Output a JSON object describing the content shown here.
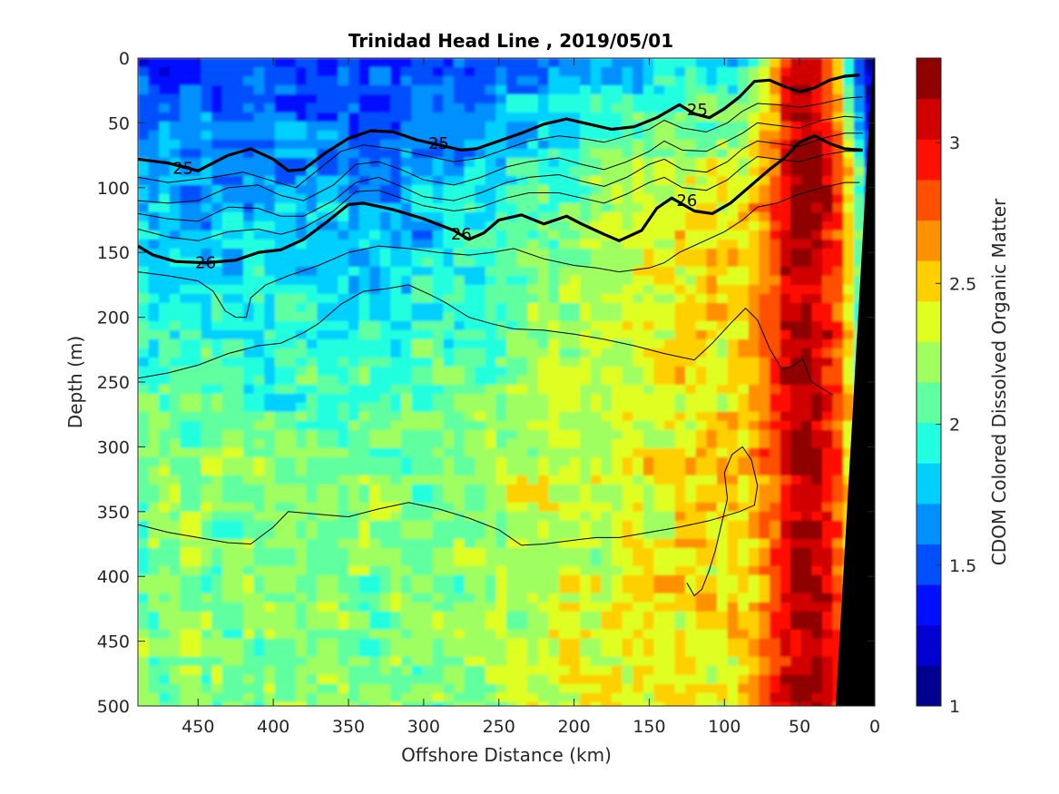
{
  "chart_data": {
    "type": "heatmap",
    "title": "Trinidad Head Line , 2019/05/01",
    "xlabel": "Offshore Distance (km)",
    "ylabel": "Depth (m)",
    "colorbar_label": "CDOM Colored Dissolved Organic Matter",
    "xlim": [
      490,
      0
    ],
    "ylim": [
      500,
      0
    ],
    "clim": [
      1,
      3.3
    ],
    "x_ticks": [
      450,
      400,
      350,
      300,
      250,
      200,
      150,
      100,
      50,
      0
    ],
    "y_ticks": [
      0,
      50,
      100,
      150,
      200,
      250,
      300,
      350,
      400,
      450,
      500
    ],
    "colorbar_ticks": [
      1,
      1.5,
      2,
      2.5,
      3
    ],
    "colormap": [
      "#00008f",
      "#0000d0",
      "#0010ff",
      "#0050ff",
      "#0090ff",
      "#00d0ff",
      "#20ffdf",
      "#60ff9f",
      "#9fff60",
      "#dfff20",
      "#ffd000",
      "#ff9000",
      "#ff5000",
      "#ff1000",
      "#d00000",
      "#8f0000"
    ],
    "field_description": {
      "cdom_offshore_surface": 1.4,
      "cdom_offshore_deep": 2.15,
      "cdom_midshelf": 2.45,
      "cdom_nearshore_max": 3.2,
      "max_location_km": 47
    },
    "contours_bold": [
      {
        "level_label": "25",
        "label_positions": [
          [
            460,
            85
          ],
          [
            290,
            66
          ],
          [
            118,
            40
          ]
        ],
        "points": [
          [
            490,
            78
          ],
          [
            470,
            81
          ],
          [
            450,
            87
          ],
          [
            430,
            75
          ],
          [
            415,
            70
          ],
          [
            400,
            78
          ],
          [
            390,
            87
          ],
          [
            380,
            86
          ],
          [
            365,
            73
          ],
          [
            350,
            62
          ],
          [
            335,
            56
          ],
          [
            320,
            57
          ],
          [
            305,
            63
          ],
          [
            290,
            67
          ],
          [
            275,
            71
          ],
          [
            265,
            70
          ],
          [
            250,
            64
          ],
          [
            235,
            58
          ],
          [
            220,
            51
          ],
          [
            205,
            47
          ],
          [
            190,
            51
          ],
          [
            175,
            55
          ],
          [
            160,
            53
          ],
          [
            145,
            46
          ],
          [
            130,
            36
          ],
          [
            120,
            43
          ],
          [
            110,
            46
          ],
          [
            100,
            39
          ],
          [
            90,
            30
          ],
          [
            80,
            18
          ],
          [
            70,
            17
          ],
          [
            60,
            22
          ],
          [
            50,
            26
          ],
          [
            40,
            23
          ],
          [
            30,
            17
          ],
          [
            20,
            14
          ],
          [
            10,
            13
          ]
        ]
      },
      {
        "level_label": "26",
        "label_positions": [
          [
            445,
            158
          ],
          [
            275,
            136
          ],
          [
            125,
            110
          ]
        ],
        "points": [
          [
            490,
            145
          ],
          [
            480,
            152
          ],
          [
            465,
            157
          ],
          [
            445,
            158
          ],
          [
            425,
            156
          ],
          [
            410,
            150
          ],
          [
            395,
            148
          ],
          [
            380,
            140
          ],
          [
            365,
            127
          ],
          [
            350,
            113
          ],
          [
            340,
            112
          ],
          [
            320,
            117
          ],
          [
            300,
            124
          ],
          [
            280,
            133
          ],
          [
            270,
            140
          ],
          [
            260,
            135
          ],
          [
            250,
            125
          ],
          [
            235,
            121
          ],
          [
            220,
            128
          ],
          [
            205,
            122
          ],
          [
            195,
            128
          ],
          [
            180,
            136
          ],
          [
            170,
            141
          ],
          [
            155,
            133
          ],
          [
            145,
            116
          ],
          [
            135,
            108
          ],
          [
            120,
            118
          ],
          [
            108,
            120
          ],
          [
            96,
            112
          ],
          [
            85,
            101
          ],
          [
            70,
            86
          ],
          [
            60,
            77
          ],
          [
            50,
            65
          ],
          [
            40,
            60
          ],
          [
            30,
            66
          ],
          [
            20,
            70
          ],
          [
            8,
            71
          ]
        ]
      }
    ],
    "contours_thin": [
      {
        "points": [
          [
            490,
            92
          ],
          [
            470,
            96
          ],
          [
            440,
            92
          ],
          [
            420,
            88
          ],
          [
            400,
            95
          ],
          [
            385,
            100
          ],
          [
            370,
            86
          ],
          [
            355,
            72
          ],
          [
            340,
            67
          ],
          [
            320,
            70
          ],
          [
            300,
            75
          ],
          [
            280,
            80
          ],
          [
            262,
            77
          ],
          [
            245,
            70
          ],
          [
            230,
            64
          ],
          [
            210,
            60
          ],
          [
            195,
            62
          ],
          [
            180,
            65
          ],
          [
            165,
            60
          ],
          [
            150,
            55
          ],
          [
            140,
            48
          ],
          [
            128,
            54
          ],
          [
            112,
            57
          ],
          [
            98,
            50
          ],
          [
            88,
            41
          ],
          [
            78,
            35
          ],
          [
            65,
            36
          ],
          [
            50,
            38
          ],
          [
            35,
            35
          ],
          [
            20,
            31
          ],
          [
            8,
            30
          ]
        ]
      },
      {
        "points": [
          [
            490,
            110
          ],
          [
            470,
            112
          ],
          [
            450,
            110
          ],
          [
            430,
            100
          ],
          [
            410,
            98
          ],
          [
            395,
            106
          ],
          [
            380,
            110
          ],
          [
            360,
            98
          ],
          [
            345,
            82
          ],
          [
            330,
            80
          ],
          [
            315,
            86
          ],
          [
            300,
            94
          ],
          [
            280,
            98
          ],
          [
            262,
            92
          ],
          [
            245,
            84
          ],
          [
            230,
            80
          ],
          [
            210,
            77
          ],
          [
            195,
            82
          ],
          [
            180,
            86
          ],
          [
            165,
            80
          ],
          [
            150,
            72
          ],
          [
            140,
            64
          ],
          [
            128,
            71
          ],
          [
            112,
            72
          ],
          [
            98,
            64
          ],
          [
            88,
            58
          ],
          [
            78,
            50
          ],
          [
            65,
            52
          ],
          [
            50,
            54
          ],
          [
            35,
            48
          ],
          [
            20,
            45
          ],
          [
            8,
            46
          ]
        ]
      },
      {
        "points": [
          [
            490,
            120
          ],
          [
            470,
            124
          ],
          [
            450,
            126
          ],
          [
            430,
            115
          ],
          [
            410,
            116
          ],
          [
            395,
            122
          ],
          [
            380,
            122
          ],
          [
            360,
            110
          ],
          [
            345,
            96
          ],
          [
            330,
            92
          ],
          [
            315,
            99
          ],
          [
            300,
            107
          ],
          [
            280,
            110
          ],
          [
            262,
            104
          ],
          [
            245,
            96
          ],
          [
            230,
            92
          ],
          [
            210,
            90
          ],
          [
            195,
            95
          ],
          [
            180,
            99
          ],
          [
            165,
            92
          ],
          [
            150,
            82
          ],
          [
            140,
            78
          ],
          [
            128,
            86
          ],
          [
            112,
            88
          ],
          [
            98,
            80
          ],
          [
            88,
            70
          ],
          [
            78,
            64
          ],
          [
            65,
            66
          ],
          [
            50,
            68
          ],
          [
            35,
            62
          ],
          [
            20,
            58
          ],
          [
            8,
            58
          ]
        ]
      },
      {
        "points": [
          [
            490,
            132
          ],
          [
            470,
            138
          ],
          [
            450,
            141
          ],
          [
            430,
            134
          ],
          [
            410,
            132
          ],
          [
            395,
            136
          ],
          [
            380,
            131
          ],
          [
            360,
            118
          ],
          [
            345,
            103
          ],
          [
            330,
            102
          ],
          [
            315,
            108
          ],
          [
            300,
            114
          ],
          [
            280,
            118
          ],
          [
            262,
            115
          ],
          [
            245,
            108
          ],
          [
            230,
            104
          ],
          [
            210,
            104
          ],
          [
            195,
            108
          ],
          [
            180,
            112
          ],
          [
            165,
            105
          ],
          [
            150,
            96
          ],
          [
            140,
            92
          ],
          [
            128,
            100
          ],
          [
            112,
            102
          ],
          [
            98,
            94
          ],
          [
            88,
            84
          ],
          [
            78,
            76
          ],
          [
            65,
            78
          ],
          [
            50,
            80
          ],
          [
            35,
            75
          ],
          [
            20,
            72
          ],
          [
            8,
            72
          ]
        ]
      },
      {
        "points": [
          [
            490,
            165
          ],
          [
            470,
            168
          ],
          [
            450,
            172
          ],
          [
            440,
            180
          ],
          [
            432,
            195
          ],
          [
            425,
            200
          ],
          [
            418,
            200
          ],
          [
            415,
            185
          ],
          [
            405,
            175
          ],
          [
            390,
            168
          ],
          [
            370,
            160
          ],
          [
            350,
            150
          ],
          [
            330,
            145
          ],
          [
            310,
            147
          ],
          [
            290,
            150
          ],
          [
            270,
            152
          ],
          [
            255,
            150
          ],
          [
            240,
            147
          ],
          [
            220,
            155
          ],
          [
            200,
            160
          ],
          [
            185,
            162
          ],
          [
            170,
            165
          ],
          [
            150,
            162
          ],
          [
            140,
            158
          ],
          [
            130,
            150
          ],
          [
            115,
            142
          ],
          [
            100,
            134
          ],
          [
            88,
            125
          ],
          [
            78,
            115
          ],
          [
            65,
            112
          ],
          [
            50,
            105
          ],
          [
            35,
            100
          ],
          [
            20,
            96
          ],
          [
            10,
            96
          ]
        ]
      },
      {
        "points": [
          [
            490,
            247
          ],
          [
            470,
            243
          ],
          [
            450,
            237
          ],
          [
            430,
            228
          ],
          [
            410,
            222
          ],
          [
            395,
            220
          ],
          [
            380,
            212
          ],
          [
            370,
            205
          ],
          [
            355,
            190
          ],
          [
            340,
            180
          ],
          [
            325,
            178
          ],
          [
            310,
            175
          ],
          [
            295,
            183
          ],
          [
            285,
            189
          ],
          [
            270,
            200
          ],
          [
            255,
            205
          ],
          [
            240,
            209
          ],
          [
            220,
            210
          ],
          [
            200,
            213
          ],
          [
            180,
            217
          ],
          [
            160,
            222
          ],
          [
            140,
            228
          ],
          [
            120,
            233
          ],
          [
            108,
            220
          ],
          [
            96,
            205
          ],
          [
            86,
            193
          ],
          [
            78,
            202
          ],
          [
            70,
            224
          ],
          [
            62,
            240
          ],
          [
            55,
            238
          ],
          [
            48,
            232
          ],
          [
            42,
            250
          ],
          [
            35,
            255
          ],
          [
            28,
            260
          ]
        ]
      },
      {
        "points": [
          [
            490,
            360
          ],
          [
            470,
            366
          ],
          [
            450,
            370
          ],
          [
            430,
            374
          ],
          [
            415,
            375
          ],
          [
            400,
            362
          ],
          [
            390,
            350
          ],
          [
            370,
            352
          ],
          [
            350,
            354
          ],
          [
            330,
            348
          ],
          [
            310,
            343
          ],
          [
            290,
            348
          ],
          [
            270,
            355
          ],
          [
            250,
            364
          ],
          [
            235,
            376
          ],
          [
            220,
            375
          ],
          [
            200,
            372
          ],
          [
            185,
            370
          ],
          [
            170,
            370
          ],
          [
            150,
            366
          ],
          [
            130,
            362
          ],
          [
            110,
            357
          ],
          [
            90,
            350
          ],
          [
            80,
            345
          ],
          [
            78,
            330
          ],
          [
            82,
            310
          ],
          [
            88,
            300
          ],
          [
            95,
            306
          ],
          [
            100,
            320
          ],
          [
            98,
            340
          ],
          [
            102,
            360
          ],
          [
            106,
            380
          ],
          [
            110,
            395
          ],
          [
            115,
            410
          ],
          [
            120,
            415
          ],
          [
            125,
            405
          ]
        ]
      }
    ]
  }
}
